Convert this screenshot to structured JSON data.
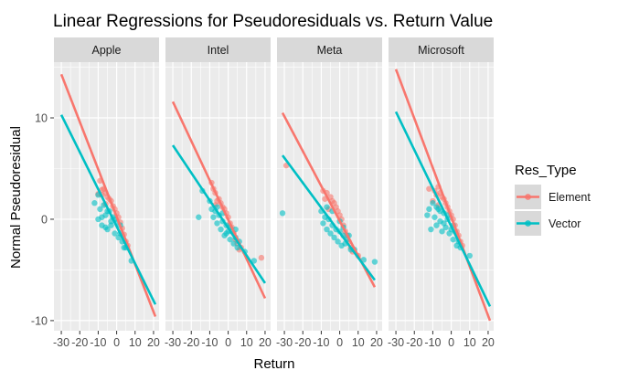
{
  "chart_data": {
    "type": "scatter",
    "title": "Linear Regressions for Pseudoresiduals vs. Return Value",
    "xlabel": "Return",
    "ylabel": "Normal Pseudoresidual",
    "xlim": [
      -34,
      23
    ],
    "ylim": [
      -11,
      15.5
    ],
    "x_ticks": [
      -30,
      -20,
      -10,
      0,
      10,
      20
    ],
    "x_tick_labels": [
      "-30",
      "-20",
      "-10",
      "0",
      "10",
      "20"
    ],
    "y_ticks": [
      -10,
      0,
      10
    ],
    "y_tick_labels": [
      "-10",
      "0",
      "10"
    ],
    "grid": true,
    "facet_wrap_by": "company",
    "legend": {
      "title": "Res_Type",
      "position": "right",
      "entries": [
        "Element",
        "Vector"
      ]
    },
    "colors": {
      "Element": "#f8766d",
      "Vector": "#00bfc4",
      "panel_bg": "#ebebeb",
      "strip_bg": "#d9d9d9",
      "grid": "#ffffff"
    },
    "panels": [
      {
        "name": "Apple",
        "lines": [
          {
            "series": "Element",
            "x": [
              -30,
              21
            ],
            "y": [
              14.3,
              -9.6
            ]
          },
          {
            "series": "Vector",
            "x": [
              -30,
              21
            ],
            "y": [
              10.3,
              -8.4
            ]
          }
        ],
        "points": [
          {
            "series": "Element",
            "x": [
              -9,
              -8,
              -7,
              -6,
              -5,
              -4,
              -3,
              -2,
              -1,
              0,
              1,
              2,
              3,
              4,
              5,
              6,
              -10,
              -8,
              -6
            ],
            "y": [
              3.8,
              2.4,
              3.0,
              2.6,
              2.2,
              2.0,
              1.8,
              1.3,
              1.0,
              0.6,
              0.2,
              -0.3,
              -0.9,
              -1.5,
              -2.2,
              -2.6,
              2.5,
              2.9,
              1.5
            ]
          },
          {
            "series": "Vector",
            "x": [
              -12,
              -10,
              -9,
              -8,
              -7,
              -6,
              -5,
              -4,
              -3,
              -2,
              -1,
              0,
              1,
              2,
              3,
              5,
              8,
              -8,
              -6,
              -5,
              -3,
              -1,
              2,
              4,
              -10
            ],
            "y": [
              1.6,
              2.4,
              1.0,
              -0.6,
              1.4,
              0.4,
              -1.0,
              0.8,
              -0.6,
              0.2,
              -1.4,
              -0.3,
              -1.8,
              -0.6,
              -2.2,
              -2.8,
              -4.1,
              0.2,
              -0.8,
              0.8,
              -0.2,
              0.0,
              -1.4,
              -2.8,
              0.0
            ]
          }
        ]
      },
      {
        "name": "Intel",
        "lines": [
          {
            "series": "Element",
            "x": [
              -30,
              20
            ],
            "y": [
              11.6,
              -7.8
            ]
          },
          {
            "series": "Vector",
            "x": [
              -30,
              20
            ],
            "y": [
              7.3,
              -6.3
            ]
          }
        ],
        "points": [
          {
            "series": "Element",
            "x": [
              -8,
              -7,
              -6,
              -5,
              -4,
              -3,
              -2,
              -1,
              0,
              1,
              2,
              3,
              4,
              5,
              6,
              7,
              18,
              -9,
              -7
            ],
            "y": [
              3.0,
              2.6,
              1.8,
              2.0,
              1.6,
              1.2,
              1.0,
              0.6,
              0.2,
              -0.4,
              -0.8,
              -1.4,
              -2.0,
              -2.4,
              -3.0,
              -2.8,
              -3.8,
              3.6,
              1.4
            ]
          },
          {
            "series": "Vector",
            "x": [
              -14,
              -16,
              -10,
              -9,
              -8,
              -7,
              -6,
              -5,
              -4,
              -3,
              -2,
              -1,
              0,
              1,
              2,
              3,
              4,
              5,
              6,
              9,
              14,
              -6,
              -3,
              1,
              4,
              -1
            ],
            "y": [
              2.8,
              0.2,
              1.8,
              1.0,
              0.2,
              0.8,
              -0.4,
              0.4,
              -1.0,
              -0.2,
              -1.6,
              -0.6,
              -1.2,
              -2.0,
              -1.2,
              -2.4,
              -1.8,
              -2.8,
              -2.2,
              -3.2,
              -4.1,
              1.2,
              0.6,
              -0.8,
              -1.0,
              -1.4
            ]
          }
        ]
      },
      {
        "name": "Meta",
        "lines": [
          {
            "series": "Element",
            "x": [
              -31,
              19
            ],
            "y": [
              10.5,
              -6.7
            ]
          },
          {
            "series": "Vector",
            "x": [
              -31,
              19
            ],
            "y": [
              6.3,
              -6.0
            ]
          }
        ],
        "points": [
          {
            "series": "Element",
            "x": [
              -29,
              -9,
              -7,
              -5,
              -4,
              -3,
              -2,
              -1,
              0,
              1,
              2,
              3,
              4,
              5,
              6,
              7,
              10,
              -6,
              -8
            ],
            "y": [
              5.3,
              2.8,
              2.6,
              2.2,
              1.8,
              1.6,
              1.2,
              0.8,
              0.4,
              0.0,
              -0.6,
              -1.2,
              -1.6,
              -2.2,
              -2.8,
              -3.2,
              -3.6,
              1.0,
              2.0
            ]
          },
          {
            "series": "Vector",
            "x": [
              -31,
              -10,
              -9,
              -8,
              -7,
              -6,
              -5,
              -4,
              -3,
              -2,
              -1,
              0,
              1,
              2,
              3,
              4,
              6,
              8,
              13,
              19,
              -7,
              -4,
              0,
              2,
              5
            ],
            "y": [
              0.6,
              0.8,
              -0.4,
              0.2,
              -1.0,
              0.0,
              -1.4,
              -0.6,
              -1.8,
              -1.0,
              -2.2,
              -1.2,
              -2.6,
              -1.6,
              -2.4,
              -2.0,
              -3.0,
              -3.0,
              -4.0,
              -4.2,
              1.2,
              0.8,
              -0.2,
              -0.8,
              -1.6
            ]
          }
        ]
      },
      {
        "name": "Microsoft",
        "lines": [
          {
            "series": "Element",
            "x": [
              -30,
              21
            ],
            "y": [
              14.8,
              -10.0
            ]
          },
          {
            "series": "Vector",
            "x": [
              -30,
              21
            ],
            "y": [
              10.6,
              -8.6
            ]
          }
        ],
        "points": [
          {
            "series": "Element",
            "x": [
              -12,
              -9,
              -8,
              -7,
              -6,
              -5,
              -4,
              -3,
              -2,
              -1,
              0,
              1,
              2,
              3,
              4,
              5,
              6,
              -10,
              -7
            ],
            "y": [
              3.0,
              2.8,
              2.4,
              3.2,
              2.6,
              2.2,
              2.0,
              1.6,
              1.2,
              0.8,
              0.4,
              0.0,
              -0.6,
              -1.2,
              -1.6,
              -2.2,
              -2.6,
              1.8,
              1.4
            ]
          },
          {
            "series": "Vector",
            "x": [
              -13,
              -11,
              -10,
              -9,
              -8,
              -7,
              -6,
              -5,
              -4,
              -3,
              -2,
              -1,
              0,
              1,
              2,
              3,
              5,
              10,
              -8,
              -6,
              -4,
              -2,
              1,
              4,
              -12
            ],
            "y": [
              0.4,
              -1.0,
              1.6,
              0.2,
              -0.6,
              1.0,
              -0.2,
              -1.2,
              0.6,
              -0.8,
              0.0,
              -1.4,
              -1.0,
              -2.0,
              -1.2,
              -2.6,
              -2.8,
              -3.6,
              1.2,
              0.8,
              -0.4,
              0.4,
              -0.6,
              -2.2,
              1.0
            ]
          }
        ]
      }
    ]
  }
}
